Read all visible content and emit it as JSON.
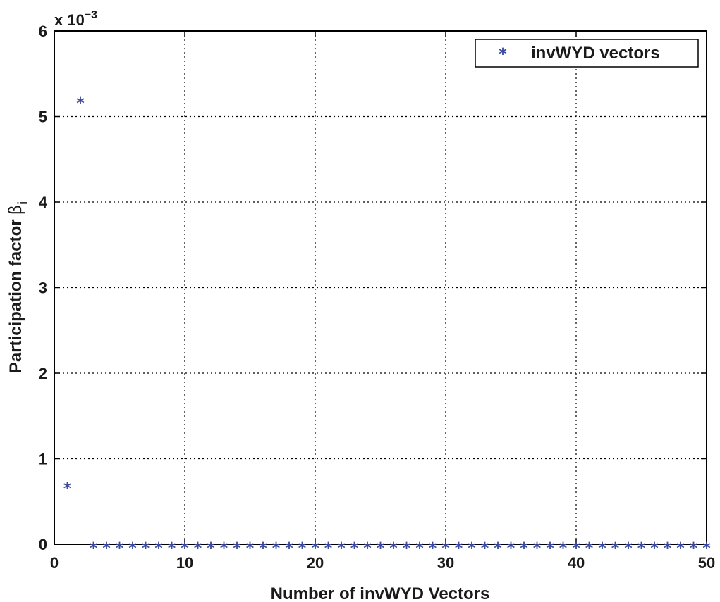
{
  "chart_data": {
    "type": "scatter",
    "title": "",
    "xlabel": "Number of invWYD Vectors",
    "ylabel": "Participation factor",
    "ylabel_symbol": "β",
    "ylabel_subscript": "i",
    "y_multiplier_base": "x 10",
    "y_multiplier_exponent": "−3",
    "xlim": [
      0,
      50
    ],
    "ylim": [
      0,
      6
    ],
    "xticks": [
      0,
      10,
      20,
      30,
      40,
      50
    ],
    "yticks": [
      0,
      1,
      2,
      3,
      4,
      5,
      6
    ],
    "grid": true,
    "legend_position": "top-right",
    "marker_glyph": "*",
    "series": [
      {
        "name": "invWYD vectors",
        "color": "#3b4a9e",
        "x": [
          1,
          2,
          3,
          4,
          5,
          6,
          7,
          8,
          9,
          10,
          11,
          12,
          13,
          14,
          15,
          16,
          17,
          18,
          19,
          20,
          21,
          22,
          23,
          24,
          25,
          26,
          27,
          28,
          29,
          30,
          31,
          32,
          33,
          34,
          35,
          36,
          37,
          38,
          39,
          40,
          41,
          42,
          43,
          44,
          45,
          46,
          47,
          48,
          49,
          50
        ],
        "y": [
          0.7,
          5.2,
          0,
          0,
          0,
          0,
          0,
          0,
          0,
          0,
          0,
          0,
          0,
          0,
          0,
          0,
          0,
          0,
          0,
          0,
          0,
          0,
          0,
          0,
          0,
          0,
          0,
          0,
          0,
          0,
          0,
          0,
          0,
          0,
          0,
          0,
          0,
          0,
          0,
          0,
          0,
          0,
          0,
          0,
          0,
          0,
          0,
          0,
          0,
          0
        ]
      }
    ]
  }
}
